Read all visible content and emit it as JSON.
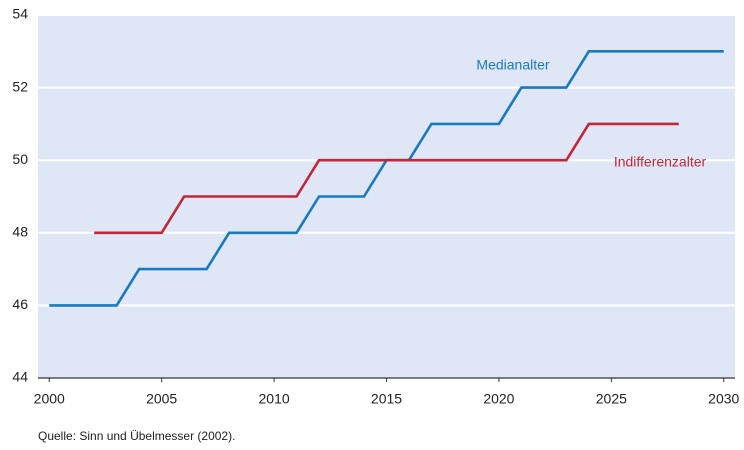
{
  "chart_data": {
    "type": "line",
    "x": [
      2000,
      2001,
      2002,
      2003,
      2004,
      2005,
      2006,
      2007,
      2008,
      2009,
      2010,
      2011,
      2012,
      2013,
      2014,
      2015,
      2016,
      2017,
      2018,
      2019,
      2020,
      2021,
      2022,
      2023,
      2024,
      2025,
      2026,
      2027,
      2028,
      2029,
      2030
    ],
    "series": [
      {
        "name": "Medianalter",
        "color": "#1a7abf",
        "values": [
          46,
          46,
          46,
          46,
          47,
          47,
          47,
          47,
          48,
          48,
          48,
          48,
          49,
          49,
          49,
          50,
          50,
          51,
          51,
          51,
          51,
          52,
          52,
          52,
          53,
          53,
          53,
          53,
          53,
          53,
          53
        ]
      },
      {
        "name": "Indifferenzalter",
        "color": "#c0283a",
        "values": [
          null,
          null,
          48,
          48,
          48,
          48,
          49,
          49,
          49,
          49,
          49,
          49,
          50,
          50,
          50,
          50,
          50,
          50,
          50,
          50,
          50,
          50,
          50,
          50,
          51,
          51,
          51,
          51,
          51,
          null,
          null
        ]
      }
    ],
    "xlim": [
      1999.5,
      2030.5
    ],
    "xticks": [
      2000,
      2005,
      2010,
      2015,
      2020,
      2025,
      2030
    ],
    "ylim": [
      44,
      54
    ],
    "yticks": [
      44,
      46,
      48,
      50,
      52,
      54
    ],
    "grid": true,
    "plot_background": "#dfe6f5",
    "source": "Quelle: Sinn und Übelmesser (2002)."
  }
}
